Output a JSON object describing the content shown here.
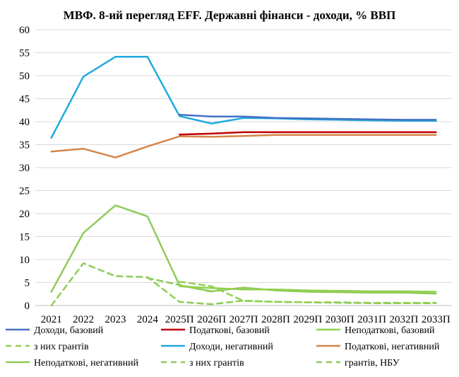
{
  "chart_data": {
    "type": "line",
    "title": "МВФ. 8-ий перегляд EFF. Державні фінанси - доходи, % ВВП",
    "xlabel": "",
    "ylabel": "",
    "ylim": [
      0,
      60
    ],
    "yticks": [
      0,
      5,
      10,
      15,
      20,
      25,
      30,
      35,
      40,
      45,
      50,
      55,
      60
    ],
    "grid": "horizontal",
    "legend_position": "bottom",
    "categories": [
      "2021",
      "2022",
      "2023",
      "2024",
      "2025П",
      "2026П",
      "2027П",
      "2028П",
      "2029П",
      "2030П",
      "2031П",
      "2032П",
      "2033П"
    ],
    "series": [
      {
        "name": "Доходи, базовий",
        "color": "#4472C4",
        "dash": false,
        "width": 2.5,
        "values": [
          null,
          null,
          null,
          null,
          41.5,
          41.1,
          41.1,
          40.8,
          40.7,
          40.6,
          40.5,
          40.4,
          40.4
        ]
      },
      {
        "name": "Податкові, базовий",
        "color": "#C00000",
        "dash": false,
        "width": 2.5,
        "values": [
          null,
          null,
          null,
          null,
          37.2,
          37.4,
          37.7,
          37.7,
          37.7,
          37.7,
          37.7,
          37.7,
          37.7
        ]
      },
      {
        "name": "Неподаткові, базовий",
        "color": "#92D050",
        "dash": false,
        "width": 2.5,
        "values": [
          null,
          null,
          null,
          null,
          4.2,
          3.8,
          3.5,
          3.5,
          3.3,
          3.2,
          3.1,
          3.1,
          3.0
        ]
      },
      {
        "name": "з них грантів",
        "color": "#92D050",
        "dash": true,
        "width": 2.5,
        "values": [
          null,
          null,
          null,
          null,
          5.2,
          4.2,
          1.0,
          0.8,
          0.7,
          0.7,
          0.6,
          0.6,
          0.6
        ]
      },
      {
        "name": "Доходи, негативний",
        "color": "#1FA9DF",
        "dash": false,
        "width": 2.5,
        "values": [
          36.5,
          49.8,
          54.1,
          54.1,
          41.2,
          39.6,
          40.8,
          40.7,
          40.5,
          40.4,
          40.3,
          40.2,
          40.2
        ]
      },
      {
        "name": "Податкові, негативний",
        "color": "#D5864A",
        "dash": false,
        "width": 2.5,
        "values": [
          33.5,
          34.1,
          32.2,
          34.6,
          36.8,
          36.7,
          36.9,
          37.1,
          37.1,
          37.1,
          37.1,
          37.1,
          37.1
        ]
      },
      {
        "name": "Неподаткові, негативний",
        "color": "#8FCB5A",
        "dash": false,
        "width": 2.5,
        "values": [
          3.0,
          15.8,
          21.8,
          19.4,
          4.4,
          3.1,
          3.9,
          3.3,
          3.0,
          2.9,
          2.8,
          2.8,
          2.6
        ]
      },
      {
        "name": "з них грантів",
        "color": "#8FCB5A",
        "dash": true,
        "width": 2.5,
        "values": [
          0.0,
          9.2,
          6.4,
          6.2,
          0.8,
          0.3,
          1.1,
          0.8,
          0.7,
          0.6,
          0.5,
          0.5,
          0.5
        ]
      },
      {
        "name": "грантів, НБУ",
        "color": "#8FCB5A",
        "dash": true,
        "width": 2.5,
        "values": [
          null,
          null,
          null,
          6.0,
          4.5,
          3.0,
          null,
          null,
          null,
          null,
          null,
          null,
          null
        ]
      }
    ]
  }
}
